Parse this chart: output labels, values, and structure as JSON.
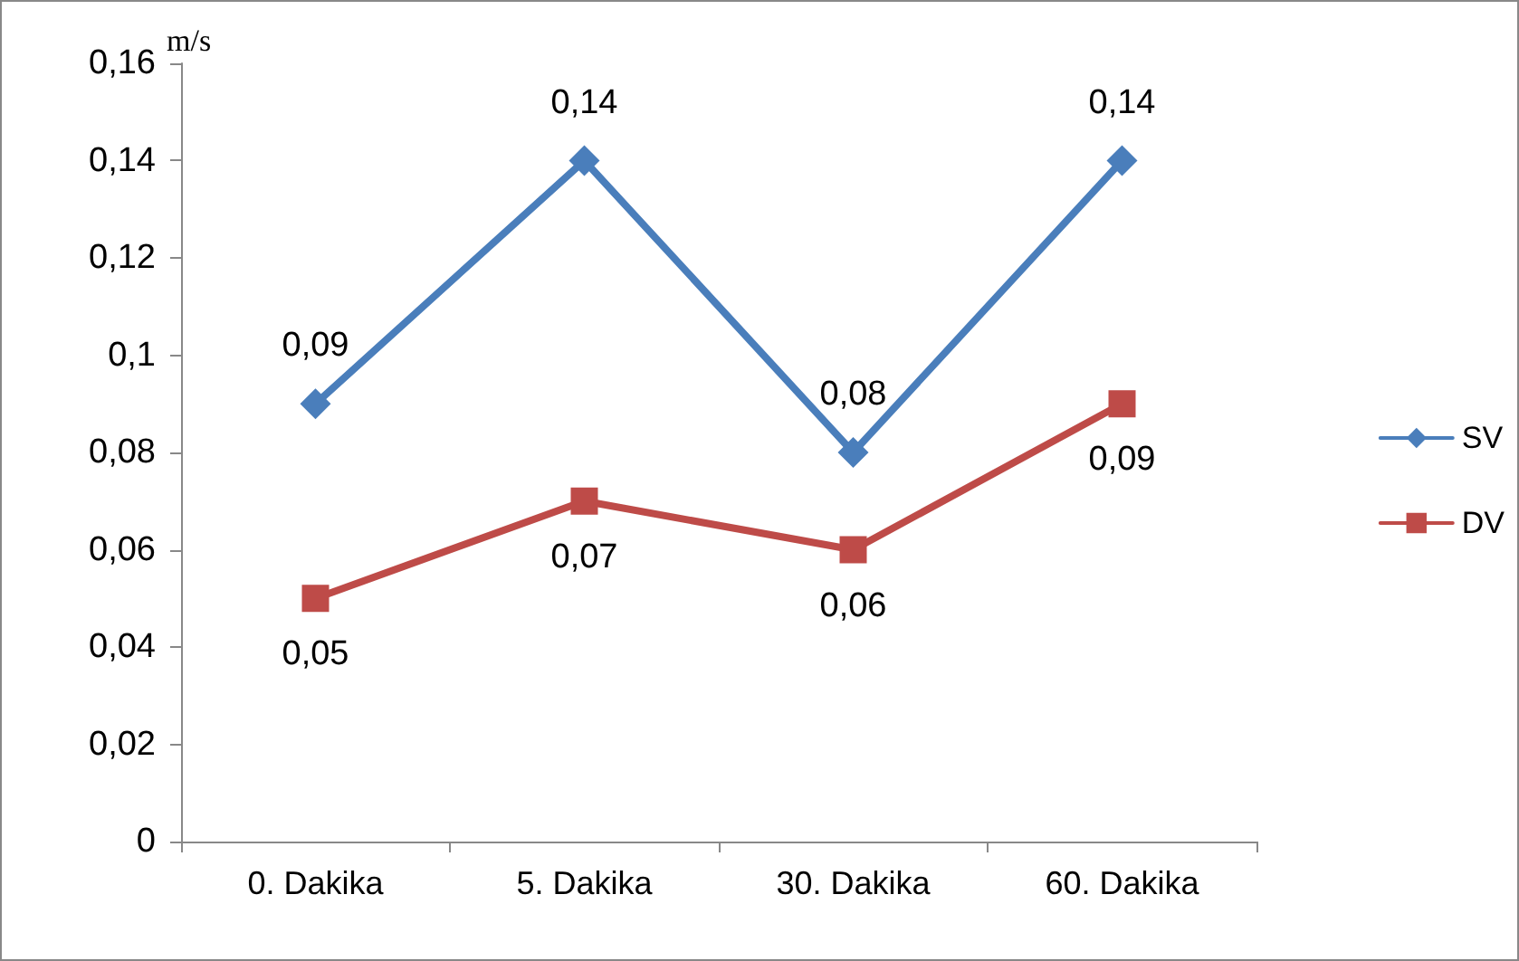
{
  "chart_data": {
    "type": "line",
    "ylabel": "m/s",
    "categories": [
      "0. Dakika",
      "5. Dakika",
      "30. Dakika",
      "60. Dakika"
    ],
    "series": [
      {
        "name": "SV",
        "color": "#4a7ebb",
        "marker": "diamond",
        "values": [
          0.09,
          0.14,
          0.08,
          0.14
        ],
        "value_labels": [
          "0,09",
          "0,14",
          "0,08",
          "0,14"
        ]
      },
      {
        "name": "DV",
        "color": "#be4b48",
        "marker": "square",
        "values": [
          0.05,
          0.07,
          0.06,
          0.09
        ],
        "value_labels": [
          "0,05",
          "0,07",
          "0,06",
          "0,09"
        ]
      }
    ],
    "ylim": [
      0,
      0.16
    ],
    "yticks": [
      0,
      {
        "value": 0.02,
        "label": "0,02"
      },
      {
        "value": 0.04,
        "label": "0,04"
      },
      {
        "value": 0.06,
        "label": "0,06"
      },
      {
        "value": 0.08,
        "label": "0,08"
      },
      {
        "value": 0.1,
        "label": "0,1"
      },
      {
        "value": 0.12,
        "label": "0,12"
      },
      {
        "value": 0.14,
        "label": "0,14"
      },
      {
        "value": 0.16,
        "label": "0,16"
      }
    ],
    "grid": false,
    "legend": "right",
    "line_style": "solid"
  }
}
